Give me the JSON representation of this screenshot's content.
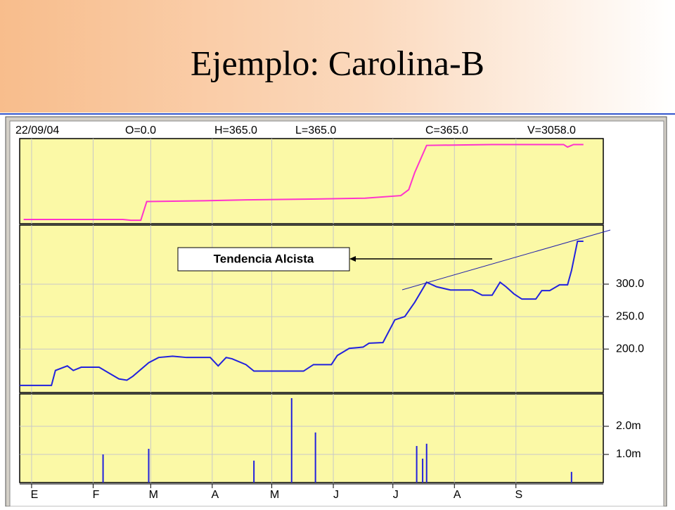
{
  "title": "Ejemplo: Carolina-B",
  "header": [
    "22/09/04",
    "O=0.0",
    "H=365.0",
    "L=365.0",
    "C=365.0",
    "V=3058.0"
  ],
  "chart_data": [
    {
      "type": "line",
      "color": "#ff33cc",
      "xlim": [
        -6,
        288
      ],
      "ylim": [
        0,
        100
      ],
      "x": [
        -4,
        46,
        50,
        55,
        58,
        87,
        108,
        144,
        168,
        186,
        190,
        193,
        199,
        232,
        236,
        268,
        270,
        273,
        278
      ],
      "values": [
        5,
        5,
        4,
        4,
        26,
        27,
        28,
        29,
        30,
        33,
        40,
        60,
        92,
        93,
        93,
        93,
        90,
        93,
        93
      ]
    },
    {
      "type": "line",
      "color": "#2222dd",
      "xlim": [
        -6,
        288
      ],
      "ylim": [
        133,
        391
      ],
      "yticks": [
        {
          "value": 200,
          "label": "200.0"
        },
        {
          "value": 250,
          "label": "250.0"
        },
        {
          "value": 300,
          "label": "300.0"
        }
      ],
      "annotation": "Tendencia Alcista",
      "x": [
        -6,
        10,
        12,
        18,
        21,
        25,
        34,
        39,
        44,
        48,
        51,
        59,
        64,
        71,
        78,
        90,
        94,
        98,
        101,
        108,
        112,
        137,
        142,
        151,
        154,
        160,
        167,
        170,
        177,
        183,
        188,
        193,
        199,
        204,
        211,
        222,
        227,
        232,
        236,
        239,
        243,
        247,
        254,
        257,
        261,
        266,
        270,
        272,
        275,
        278
      ],
      "values": [
        144,
        144,
        167,
        174,
        167,
        172,
        172,
        163,
        154,
        152,
        158,
        179,
        187,
        189,
        187,
        187,
        174,
        187,
        185,
        176,
        166,
        166,
        176,
        176,
        190,
        201,
        203,
        209,
        210,
        245,
        250,
        272,
        303,
        296,
        291,
        291,
        283,
        283,
        303,
        296,
        285,
        277,
        277,
        290,
        290,
        299,
        299,
        321,
        366,
        366
      ]
    },
    {
      "type": "bar",
      "color": "#2222dd",
      "xlim": [
        -6,
        288
      ],
      "ylim": [
        0,
        3150000
      ],
      "yticks": [
        {
          "value": 1000000,
          "label": "1.0m"
        },
        {
          "value": 2000000,
          "label": "2.0m"
        }
      ],
      "xticks": [
        {
          "value": 0,
          "label": "E"
        },
        {
          "value": 31,
          "label": "F"
        },
        {
          "value": 60,
          "label": "M"
        },
        {
          "value": 91,
          "label": "A"
        },
        {
          "value": 121,
          "label": "M"
        },
        {
          "value": 152,
          "label": "J"
        },
        {
          "value": 182,
          "label": "J"
        },
        {
          "value": 213,
          "label": "A"
        },
        {
          "value": 244,
          "label": "S"
        }
      ],
      "x": [
        36,
        59,
        112,
        131,
        143,
        194,
        197,
        199,
        272
      ],
      "values": [
        1000000,
        1200000,
        780000,
        3000000,
        1780000,
        1300000,
        850000,
        1380000,
        380000
      ]
    }
  ]
}
